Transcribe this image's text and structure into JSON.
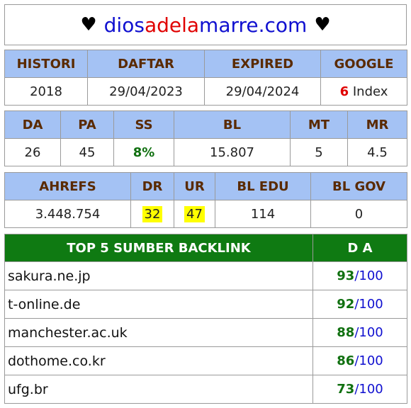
{
  "header": {
    "heart": "♥",
    "domain_parts": [
      {
        "text": "dios",
        "color": "blue"
      },
      {
        "text": "adela",
        "color": "red"
      },
      {
        "text": "marre.com",
        "color": "blue"
      }
    ]
  },
  "table1": {
    "headers": [
      "HISTORI",
      "DAFTAR",
      "EXPIRED",
      "GOOGLE"
    ],
    "histori": "2018",
    "daftar": "29/04/2023",
    "expired": "29/04/2024",
    "google_count": "6",
    "google_suffix": " Index"
  },
  "table2": {
    "headers": [
      "DA",
      "PA",
      "SS",
      "BL",
      "MT",
      "MR"
    ],
    "values": [
      "26",
      "45",
      "8%",
      "15.807",
      "5",
      "4.5"
    ]
  },
  "table3": {
    "headers": [
      "AHREFS",
      "DR",
      "UR",
      "BL EDU",
      "BL GOV"
    ],
    "values": [
      "3.448.754",
      "32",
      "47",
      "114",
      "0"
    ]
  },
  "backlinks": {
    "header_left": "TOP 5 SUMBER BACKLINK",
    "header_right": "D A",
    "max": "/100",
    "rows": [
      {
        "site": "sakura.ne.jp",
        "da": "93"
      },
      {
        "site": "t-online.de",
        "da": "92"
      },
      {
        "site": "manchester.ac.uk",
        "da": "88"
      },
      {
        "site": "dothome.co.kr",
        "da": "86"
      },
      {
        "site": "ufg.br",
        "da": "73"
      }
    ]
  },
  "colors": {
    "blue": "#1010d0",
    "red": "#e00000",
    "header_bg": "#a4c2f4",
    "green_bg": "#0f7a12",
    "highlight": "#ffff00"
  }
}
